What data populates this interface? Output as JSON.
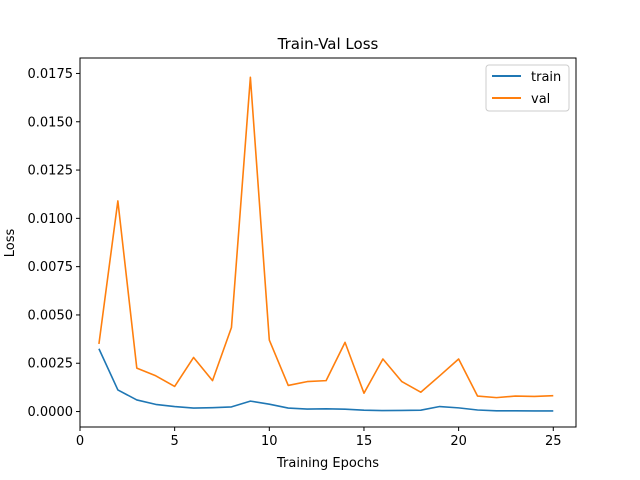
{
  "chart_data": {
    "type": "line",
    "title": "Train-Val Loss",
    "xlabel": "Training Epochs",
    "ylabel": "Loss",
    "xlim": [
      0,
      26.2
    ],
    "ylim": [
      -0.0008,
      0.0183
    ],
    "xticks": [
      0,
      5,
      10,
      15,
      20,
      25
    ],
    "xtick_labels": [
      "0",
      "5",
      "10",
      "15",
      "20",
      "25"
    ],
    "yticks": [
      0.0,
      0.0025,
      0.005,
      0.0075,
      0.01,
      0.0125,
      0.015,
      0.0175
    ],
    "ytick_labels": [
      "0.0000",
      "0.0025",
      "0.0050",
      "0.0075",
      "0.0100",
      "0.0125",
      "0.0150",
      "0.0175"
    ],
    "grid": false,
    "legend_position": "top-right",
    "x": [
      1,
      2,
      3,
      4,
      5,
      6,
      7,
      8,
      9,
      10,
      11,
      12,
      13,
      14,
      15,
      16,
      17,
      18,
      19,
      20,
      21,
      22,
      23,
      24,
      25
    ],
    "series": [
      {
        "name": "train",
        "color": "#1f77b4",
        "values": [
          0.00325,
          0.00112,
          0.0006,
          0.00037,
          0.00026,
          0.00018,
          0.0002,
          0.00024,
          0.00054,
          0.00038,
          0.00018,
          0.00013,
          0.00014,
          0.00012,
          7e-05,
          5e-05,
          6e-05,
          7e-05,
          0.00026,
          0.00019,
          8e-05,
          4e-05,
          4e-05,
          3e-05,
          3e-05
        ]
      },
      {
        "name": "val",
        "color": "#ff7f0e",
        "values": [
          0.0035,
          0.0109,
          0.00225,
          0.00185,
          0.0013,
          0.0028,
          0.0016,
          0.00435,
          0.0173,
          0.0037,
          0.00135,
          0.00155,
          0.0016,
          0.00358,
          0.00095,
          0.00272,
          0.00155,
          0.001,
          0.00185,
          0.00272,
          0.0008,
          0.00072,
          0.0008,
          0.00078,
          0.00082
        ]
      }
    ]
  }
}
